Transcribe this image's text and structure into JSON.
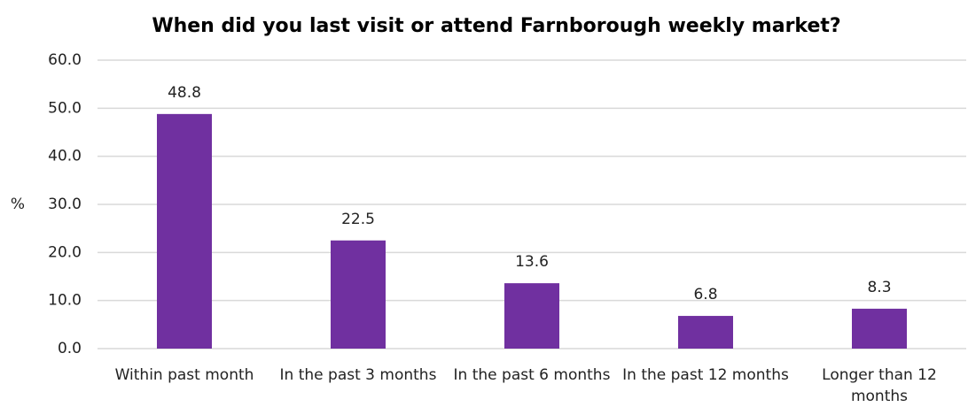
{
  "chart_data": {
    "type": "bar",
    "title": "When did you last visit or attend Farnborough weekly market?",
    "y_label": "%",
    "categories": [
      "Within past month",
      "In the past 3 months",
      "In the past 6 months",
      "In the past 12 months",
      "Longer than 12 months"
    ],
    "values": [
      48.8,
      22.5,
      13.6,
      6.8,
      8.3
    ],
    "color": "#7030a0",
    "ylim": [
      0,
      60
    ],
    "yticks": [
      {
        "value": 0,
        "label": "0.0"
      },
      {
        "value": 10,
        "label": "10.0"
      },
      {
        "value": 20,
        "label": "20.0"
      },
      {
        "value": 30,
        "label": "30.0"
      },
      {
        "value": 40,
        "label": "40.0"
      },
      {
        "value": 50,
        "label": "50.0"
      },
      {
        "value": 60,
        "label": "60.0"
      }
    ],
    "grid": true
  }
}
